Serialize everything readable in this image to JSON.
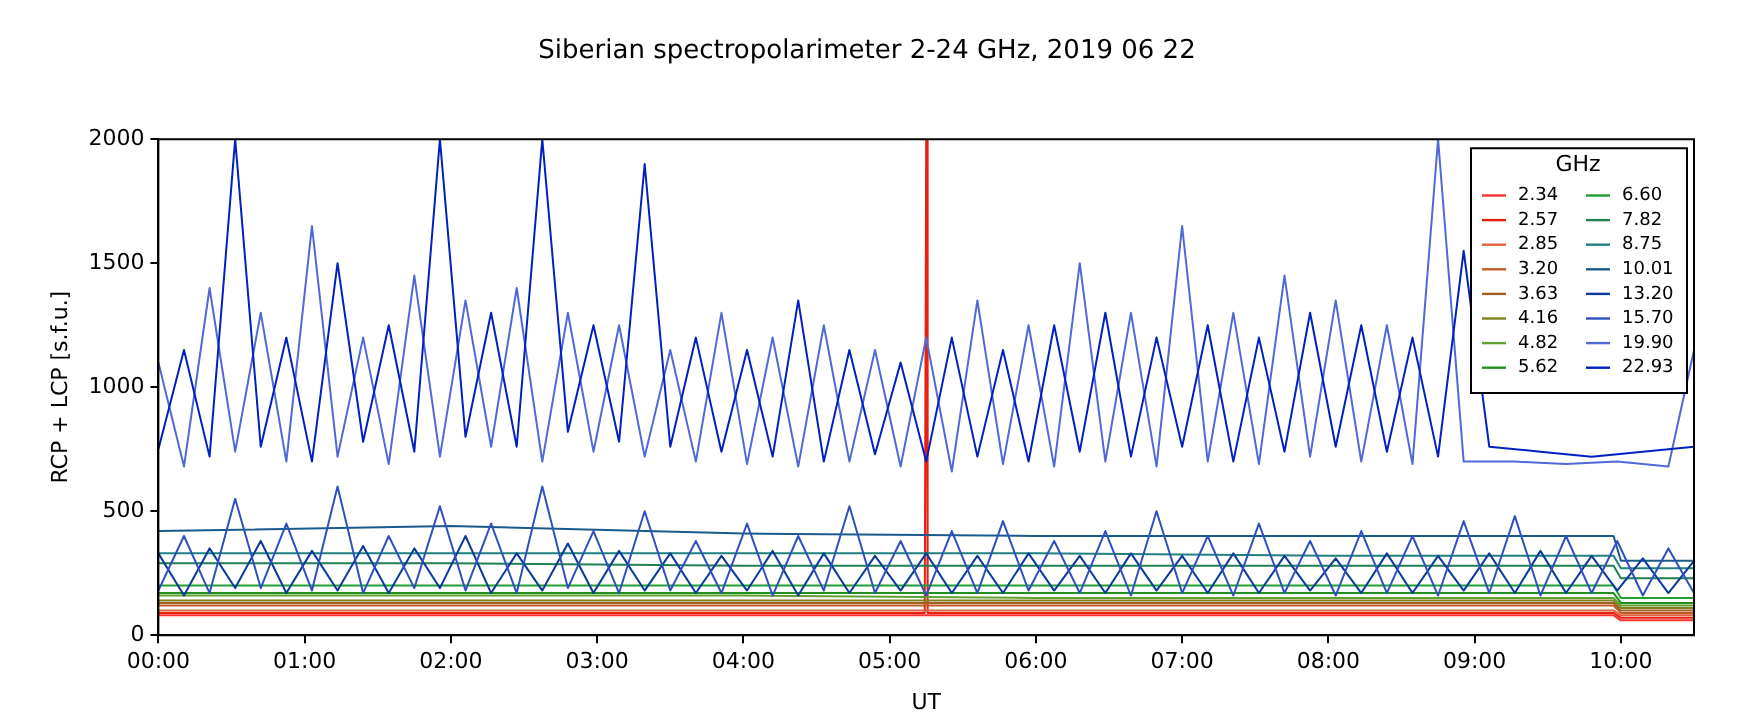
{
  "chart_data": {
    "type": "line",
    "title": "Siberian spectropolarimeter 2-24 GHz, 2019 06 22",
    "xlabel": "UT",
    "ylabel": "RCP + LCP [s.f.u.]",
    "legend_title": "GHz",
    "legend": "top right",
    "grid": false,
    "xlim": [
      0,
      10.5
    ],
    "ylim": [
      0,
      2000
    ],
    "yticks": [
      0,
      500,
      1000,
      1500,
      2000
    ],
    "xticks": [
      {
        "value": 0,
        "label": "00:00"
      },
      {
        "value": 1,
        "label": "01:00"
      },
      {
        "value": 2,
        "label": "02:00"
      },
      {
        "value": 3,
        "label": "03:00"
      },
      {
        "value": 4,
        "label": "04:00"
      },
      {
        "value": 5,
        "label": "05:00"
      },
      {
        "value": 6,
        "label": "06:00"
      },
      {
        "value": 7,
        "label": "07:00"
      },
      {
        "value": 8,
        "label": "08:00"
      },
      {
        "value": 9,
        "label": "09:00"
      },
      {
        "value": 10,
        "label": "10:00"
      }
    ],
    "x": [
      0,
      0.175,
      0.35,
      0.525,
      0.7,
      0.875,
      1.05,
      1.225,
      1.4,
      1.575,
      1.75,
      1.925,
      2.1,
      2.275,
      2.45,
      2.625,
      2.8,
      2.975,
      3.15,
      3.325,
      3.5,
      3.675,
      3.85,
      4.025,
      4.2,
      4.375,
      4.55,
      4.725,
      4.9,
      5.075,
      5.25,
      5.425,
      5.6,
      5.775,
      5.95,
      6.125,
      6.3,
      6.475,
      6.65,
      6.825,
      7.0,
      7.175,
      7.35,
      7.525,
      7.7,
      7.875,
      8.05,
      8.225,
      8.4,
      8.575,
      8.75,
      8.925,
      9.1,
      9.275,
      9.45,
      9.625,
      9.8,
      9.975,
      10.15,
      10.325,
      10.5
    ],
    "series": [
      {
        "name": "2.34",
        "color": "#ff3030",
        "x": [
          0,
          2,
          4,
          6,
          8,
          9.95,
          10,
          10.5
        ],
        "values": [
          80,
          80,
          80,
          80,
          80,
          80,
          60,
          60
        ]
      },
      {
        "name": "2.57",
        "color": "#e82010",
        "x": [
          0,
          2,
          4,
          5.24,
          5.25,
          5.26,
          6,
          8,
          9.95,
          10,
          10.5
        ],
        "values": [
          90,
          90,
          90,
          90,
          2000,
          90,
          90,
          90,
          90,
          70,
          70
        ]
      },
      {
        "name": "2.85",
        "color": "#e06040",
        "x": [
          0,
          2,
          4,
          6,
          8,
          9.95,
          10,
          10.5
        ],
        "values": [
          100,
          100,
          100,
          100,
          100,
          100,
          80,
          80
        ]
      },
      {
        "name": "3.20",
        "color": "#c05828",
        "x": [
          0,
          2,
          4,
          6,
          8,
          9.95,
          10,
          10.5
        ],
        "values": [
          120,
          120,
          120,
          120,
          120,
          120,
          90,
          90
        ]
      },
      {
        "name": "3.63",
        "color": "#a06020",
        "x": [
          0,
          2,
          4,
          6,
          8,
          9.95,
          10,
          10.5
        ],
        "values": [
          130,
          130,
          130,
          130,
          130,
          130,
          100,
          100
        ]
      },
      {
        "name": "4.16",
        "color": "#808020",
        "x": [
          0,
          2,
          4,
          6,
          8,
          9.95,
          10,
          10.5
        ],
        "values": [
          140,
          140,
          140,
          140,
          140,
          140,
          110,
          110
        ]
      },
      {
        "name": "4.82",
        "color": "#60a030",
        "x": [
          0,
          2,
          4,
          6,
          8,
          9.95,
          10,
          10.5
        ],
        "values": [
          160,
          160,
          160,
          150,
          150,
          150,
          120,
          120
        ]
      },
      {
        "name": "5.62",
        "color": "#209020",
        "x": [
          0,
          2,
          4,
          6,
          8,
          9.95,
          10,
          10.5
        ],
        "values": [
          170,
          170,
          170,
          170,
          170,
          170,
          130,
          130
        ]
      },
      {
        "name": "6.60",
        "color": "#20a030",
        "x": [
          0,
          2,
          4,
          6,
          8,
          9.95,
          10,
          10.5
        ],
        "values": [
          200,
          200,
          200,
          200,
          200,
          200,
          150,
          150
        ]
      },
      {
        "name": "7.82",
        "color": "#208050",
        "x": [
          0,
          2,
          4,
          6,
          8,
          9.95,
          10,
          10.5
        ],
        "values": [
          290,
          290,
          280,
          280,
          280,
          280,
          230,
          230
        ]
      },
      {
        "name": "8.75",
        "color": "#208080",
        "x": [
          0,
          2,
          4,
          6,
          8,
          9.95,
          10,
          10.5
        ],
        "values": [
          330,
          330,
          330,
          330,
          320,
          320,
          270,
          270
        ]
      },
      {
        "name": "10.01",
        "color": "#1a5a8a",
        "x": [
          0,
          2,
          4,
          6,
          8,
          9.95,
          10,
          10.5
        ],
        "values": [
          420,
          440,
          410,
          400,
          400,
          400,
          300,
          300
        ]
      },
      {
        "name": "13.20",
        "color": "#0a3a9a",
        "values": [
          330,
          160,
          350,
          190,
          380,
          170,
          340,
          180,
          360,
          170,
          350,
          190,
          400,
          170,
          330,
          180,
          370,
          170,
          340,
          180,
          330,
          170,
          320,
          180,
          340,
          160,
          330,
          170,
          320,
          180,
          330,
          170,
          320,
          170,
          330,
          180,
          320,
          170,
          330,
          180,
          320,
          170,
          330,
          170,
          320,
          180,
          310,
          170,
          330,
          170,
          320,
          180,
          330,
          170,
          340,
          170,
          320,
          180,
          310,
          170,
          300
        ]
      },
      {
        "name": "15.70",
        "color": "#3050c0",
        "values": [
          180,
          400,
          170,
          550,
          190,
          450,
          180,
          600,
          170,
          400,
          190,
          520,
          180,
          450,
          170,
          600,
          190,
          420,
          170,
          500,
          180,
          380,
          170,
          450,
          160,
          400,
          180,
          520,
          170,
          380,
          160,
          420,
          170,
          460,
          180,
          380,
          170,
          420,
          160,
          500,
          170,
          400,
          160,
          450,
          170,
          380,
          160,
          420,
          170,
          400,
          160,
          460,
          170,
          480,
          160,
          400,
          170,
          380,
          160,
          350,
          170
        ]
      },
      {
        "name": "19.90",
        "color": "#5068d8",
        "values": [
          1100,
          680,
          1400,
          740,
          1300,
          700,
          1650,
          720,
          1200,
          690,
          1450,
          720,
          1350,
          760,
          1400,
          700,
          1300,
          740,
          1250,
          720,
          1150,
          700,
          1300,
          690,
          1200,
          680,
          1250,
          700,
          1150,
          680,
          1200,
          660,
          1350,
          690,
          1250,
          680,
          1500,
          700,
          1300,
          680,
          1650,
          700,
          1300,
          690,
          1450,
          720,
          1350,
          700,
          1250,
          690,
          2000,
          700,
          null,
          700,
          null,
          690,
          null,
          700,
          null,
          680,
          1150
        ]
      },
      {
        "name": "22.93",
        "color": "#0020c0",
        "values": [
          750,
          1150,
          720,
          2000,
          760,
          1200,
          700,
          1500,
          780,
          1250,
          740,
          2000,
          800,
          1300,
          760,
          2000,
          820,
          1250,
          780,
          1900,
          760,
          1200,
          740,
          1150,
          720,
          1350,
          700,
          1150,
          730,
          1100,
          700,
          1200,
          720,
          1150,
          700,
          1250,
          740,
          1300,
          720,
          1200,
          760,
          1250,
          700,
          1200,
          740,
          1300,
          760,
          1250,
          740,
          1200,
          720,
          1550,
          760,
          null,
          740,
          null,
          720,
          null,
          740,
          null,
          760
        ]
      }
    ]
  }
}
